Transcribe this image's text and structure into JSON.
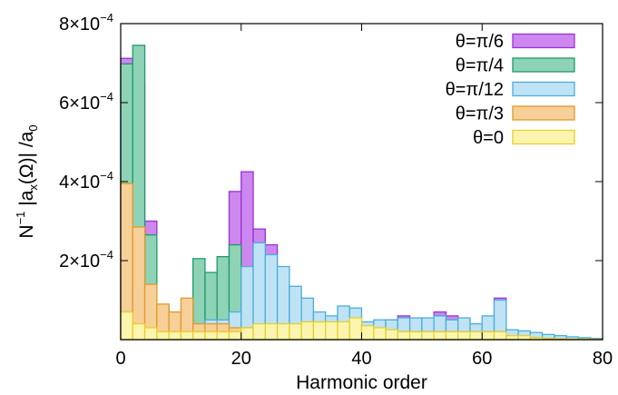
{
  "chart_data": {
    "type": "bar",
    "bin_width": 2,
    "xlabel": "Harmonic order",
    "ylabel_main": "N",
    "ylabel_exp": "−1",
    "ylabel_mid": " |a",
    "ylabel_sub1": "x",
    "ylabel_mid2": "(Ω)| /a",
    "ylabel_sub2": "0",
    "xlim": [
      0,
      80
    ],
    "ylim": [
      0,
      0.0008
    ],
    "x_ticks": [
      {
        "value": 0,
        "label": "0"
      },
      {
        "value": 20,
        "label": "20"
      },
      {
        "value": 40,
        "label": "40"
      },
      {
        "value": 60,
        "label": "60"
      },
      {
        "value": 80,
        "label": "80"
      }
    ],
    "y_ticks": [
      {
        "value": 0.0002,
        "mant": "2×10",
        "exp": "−4"
      },
      {
        "value": 0.0004,
        "mant": "4×10",
        "exp": "−4"
      },
      {
        "value": 0.0006,
        "mant": "6×10",
        "exp": "−4"
      },
      {
        "value": 0.0008,
        "mant": "8×10",
        "exp": "−4"
      }
    ],
    "legend_position": "top-right",
    "x": [
      0,
      2,
      4,
      6,
      8,
      10,
      12,
      14,
      16,
      18,
      20,
      22,
      24,
      26,
      28,
      30,
      32,
      34,
      36,
      38,
      40,
      42,
      44,
      46,
      48,
      50,
      52,
      54,
      56,
      58,
      60,
      62,
      64,
      66,
      68,
      70,
      72,
      74,
      76,
      78
    ],
    "series": [
      {
        "name": "θ=π/6",
        "fill": "#cc88ee",
        "stroke": "#9b30d8",
        "values": [
          0.000712,
          0.00065,
          0.0003,
          8e-05,
          5e-05,
          3e-05,
          3e-05,
          4e-05,
          0.00012,
          0.000375,
          0.000425,
          0.00028,
          0.00024,
          0.00015,
          0.00011,
          6e-05,
          5e-05,
          4e-05,
          3e-05,
          2e-05,
          3e-05,
          3e-05,
          5e-05,
          6e-05,
          5e-05,
          5e-05,
          7e-05,
          6e-05,
          5e-05,
          4e-05,
          4e-05,
          0.000105,
          2e-05,
          1e-05,
          5e-06,
          3e-06,
          2e-06,
          1e-06,
          1e-06,
          1e-06
        ]
      },
      {
        "name": "θ=π/4",
        "fill": "#8fd3b6",
        "stroke": "#1e9a6c",
        "values": [
          0.000698,
          0.000745,
          0.000265,
          8.5e-05,
          5e-05,
          4e-05,
          0.000205,
          0.00017,
          0.00021,
          0.00024,
          0.00014,
          0.00016,
          0.00013,
          9e-05,
          7e-05,
          5e-05,
          4e-05,
          3e-05,
          3e-05,
          2e-05,
          3e-05,
          3e-05,
          4e-05,
          5e-05,
          4e-05,
          4e-05,
          6e-05,
          5e-05,
          4e-05,
          3e-05,
          3e-05,
          4e-05,
          2e-05,
          1e-05,
          5e-06,
          3e-06,
          2e-06,
          1e-06,
          1e-06,
          1e-06
        ]
      },
      {
        "name": "θ=π/12",
        "fill": "#bfe3f5",
        "stroke": "#4aaed9",
        "values": [
          6e-05,
          5e-05,
          4e-05,
          4e-05,
          5e-05,
          4e-05,
          4e-05,
          5e-05,
          5e-05,
          7e-05,
          0.000185,
          0.000245,
          0.000215,
          0.000185,
          0.000135,
          0.000105,
          7e-05,
          6e-05,
          8.5e-05,
          8e-05,
          4.5e-05,
          5e-05,
          5e-05,
          5.5e-05,
          5.5e-05,
          5.5e-05,
          6e-05,
          5e-05,
          5.5e-05,
          4e-05,
          6e-05,
          0.0001,
          2.5e-05,
          2.2e-05,
          1.8e-05,
          1.3e-05,
          1e-05,
          7e-06,
          5e-06,
          3e-06
        ]
      },
      {
        "name": "θ=π/3",
        "fill": "#f7cf98",
        "stroke": "#e09a2a",
        "values": [
          0.000395,
          0.000285,
          0.00014,
          9e-05,
          7e-05,
          0.000105,
          4e-05,
          4e-05,
          4e-05,
          3e-05,
          3e-05,
          3e-05,
          3e-05,
          3e-05,
          3e-05,
          2e-05,
          2e-05,
          2e-05,
          2e-05,
          2e-05,
          2e-05,
          2e-05,
          2e-05,
          2e-05,
          2e-05,
          2e-05,
          2e-05,
          2e-05,
          2e-05,
          2e-05,
          2e-05,
          2e-05,
          1e-05,
          1e-05,
          5e-06,
          3e-06,
          2e-06,
          1e-06,
          1e-06,
          1e-06
        ]
      },
      {
        "name": "θ=0",
        "fill": "#fcf5b0",
        "stroke": "#e8cf2a",
        "values": [
          7e-05,
          4e-05,
          3e-05,
          2e-05,
          2e-05,
          2e-05,
          2e-05,
          2e-05,
          2e-05,
          2e-05,
          3e-05,
          4e-05,
          4e-05,
          4e-05,
          4e-05,
          4.5e-05,
          4.5e-05,
          4.5e-05,
          4.5e-05,
          5.5e-05,
          3.5e-05,
          3e-05,
          2.5e-05,
          2e-05,
          2e-05,
          2e-05,
          2e-05,
          2e-05,
          2e-05,
          2e-05,
          2e-05,
          2e-05,
          1e-05,
          1e-05,
          5e-06,
          3e-06,
          2e-06,
          1e-06,
          1e-06,
          1e-06
        ]
      }
    ]
  }
}
